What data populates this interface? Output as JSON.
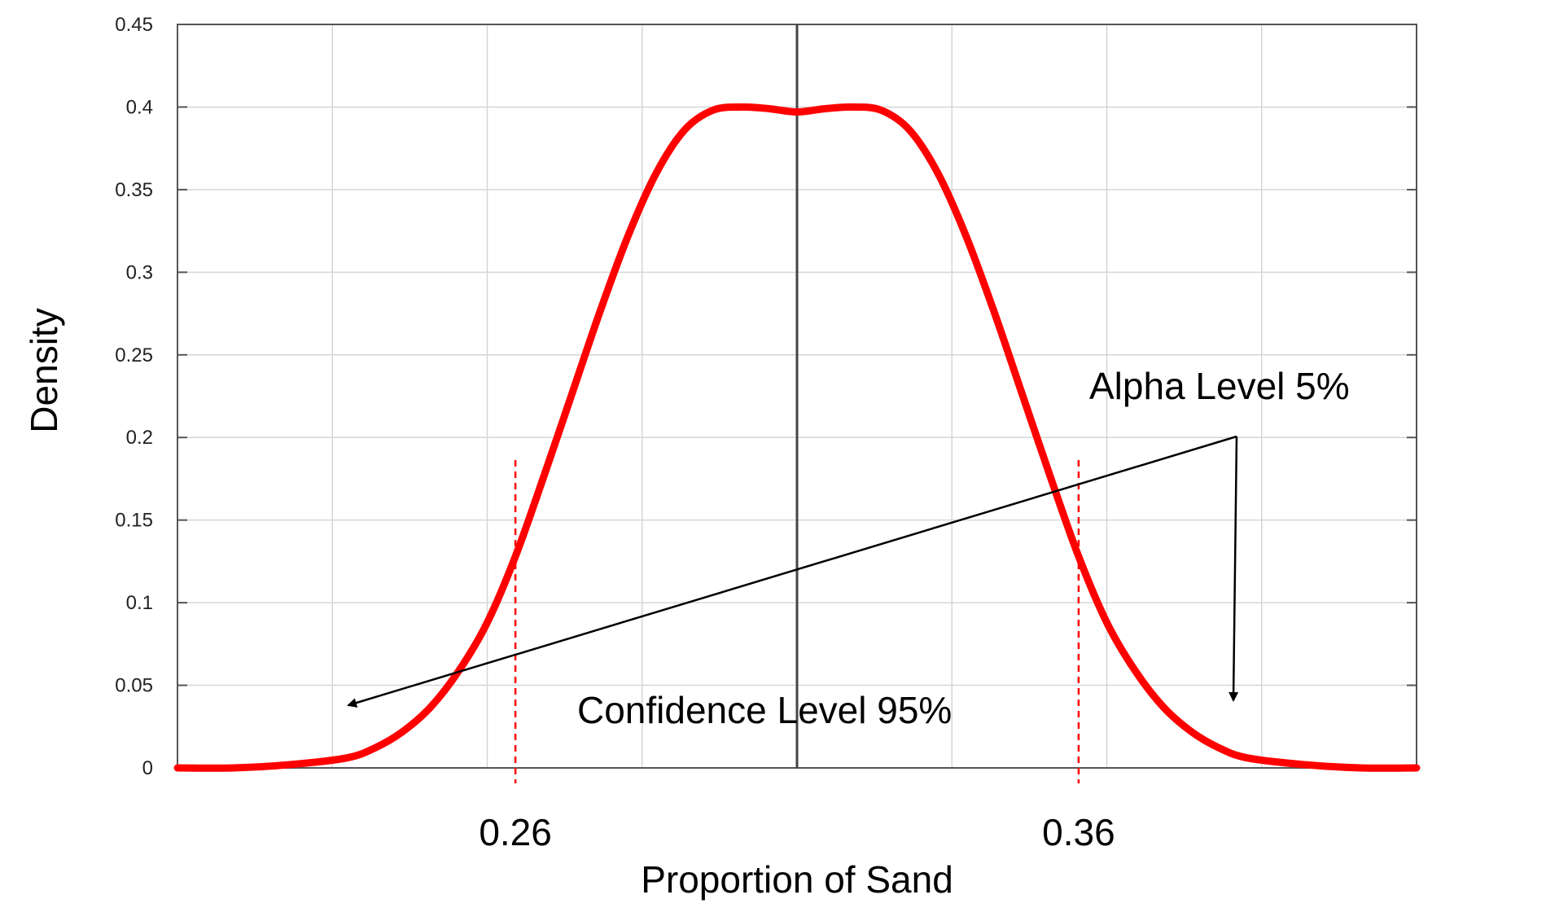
{
  "chart_data": {
    "type": "line",
    "xlabel": "Proportion of Sand",
    "ylabel": "Density",
    "ylim": [
      0,
      0.45
    ],
    "xlim": [
      0.2,
      0.42
    ],
    "grid": true,
    "yticks": [
      "0",
      "0.05",
      "0.1",
      "0.15",
      "0.2",
      "0.25",
      "0.3",
      "0.35",
      "0.4",
      "0.45"
    ],
    "xticks": [
      "0.26",
      "0.36"
    ],
    "mean": 0.31,
    "series": [
      {
        "color": "#ff0000",
        "x": [
          0.2,
          0.21,
          0.22,
          0.23,
          0.235,
          0.24,
          0.245,
          0.25,
          0.255,
          0.26,
          0.265,
          0.27,
          0.275,
          0.28,
          0.285,
          0.29,
          0.295,
          0.3,
          0.305,
          0.31,
          0.315,
          0.32,
          0.325,
          0.33,
          0.335,
          0.34,
          0.345,
          0.35,
          0.355,
          0.36,
          0.365,
          0.37,
          0.375,
          0.38,
          0.385,
          0.39,
          0.4,
          0.41,
          0.42
        ],
        "y": [
          0.0,
          0.0,
          0.002,
          0.006,
          0.012,
          0.022,
          0.037,
          0.059,
          0.088,
          0.128,
          0.176,
          0.226,
          0.276,
          0.322,
          0.36,
          0.386,
          0.398,
          0.4,
          0.399,
          0.397,
          0.399,
          0.4,
          0.398,
          0.386,
          0.36,
          0.322,
          0.276,
          0.226,
          0.176,
          0.128,
          0.088,
          0.059,
          0.037,
          0.022,
          0.012,
          0.006,
          0.002,
          0.0,
          0.0
        ]
      }
    ],
    "critical_lines": [
      0.26,
      0.36
    ],
    "annotations": {
      "alpha": "Alpha Level 5%",
      "confidence": "Confidence Level 95%"
    }
  }
}
